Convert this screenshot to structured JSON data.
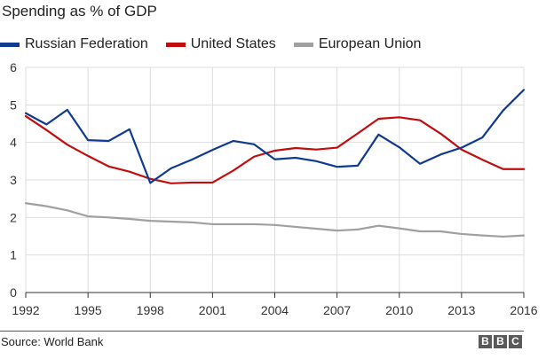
{
  "chart_data": {
    "type": "line",
    "title": "Spending as % of GDP",
    "xlabel": "",
    "ylabel": "",
    "xlim": [
      1992,
      2016
    ],
    "ylim": [
      0,
      6
    ],
    "x_ticks": [
      "1992",
      "1995",
      "1998",
      "2001",
      "2004",
      "2007",
      "2010",
      "2013",
      "2016"
    ],
    "y_ticks": [
      "0",
      "1",
      "2",
      "3",
      "4",
      "5",
      "6"
    ],
    "grid": true,
    "legend_position": "top-left",
    "x": [
      1992,
      1993,
      1994,
      1995,
      1996,
      1997,
      1998,
      1999,
      2000,
      2001,
      2002,
      2003,
      2004,
      2005,
      2006,
      2007,
      2008,
      2009,
      2010,
      2011,
      2012,
      2013,
      2014,
      2015,
      2016
    ],
    "series": [
      {
        "name": "Russian Federation",
        "color": "#0e3a8f",
        "values": [
          4.78,
          4.48,
          4.87,
          4.06,
          4.04,
          4.35,
          2.92,
          3.31,
          3.54,
          3.8,
          4.04,
          3.95,
          3.55,
          3.59,
          3.5,
          3.35,
          3.38,
          4.21,
          3.87,
          3.43,
          3.68,
          3.86,
          4.13,
          4.85,
          5.4
        ]
      },
      {
        "name": "United States",
        "color": "#c10d0d",
        "values": [
          4.7,
          4.33,
          3.94,
          3.64,
          3.36,
          3.22,
          3.03,
          2.91,
          2.93,
          2.93,
          3.25,
          3.62,
          3.78,
          3.85,
          3.81,
          3.86,
          4.24,
          4.63,
          4.67,
          4.59,
          4.23,
          3.81,
          3.54,
          3.29,
          3.29
        ]
      },
      {
        "name": "European Union",
        "color": "#a0a0a0",
        "values": [
          2.38,
          2.3,
          2.19,
          2.03,
          2.0,
          1.96,
          1.91,
          1.89,
          1.87,
          1.82,
          1.82,
          1.82,
          1.8,
          1.75,
          1.7,
          1.65,
          1.68,
          1.78,
          1.71,
          1.63,
          1.63,
          1.56,
          1.52,
          1.49,
          1.52
        ]
      }
    ]
  },
  "footer": {
    "source": "Source: World Bank",
    "logo_letters": [
      "B",
      "B",
      "C"
    ]
  }
}
